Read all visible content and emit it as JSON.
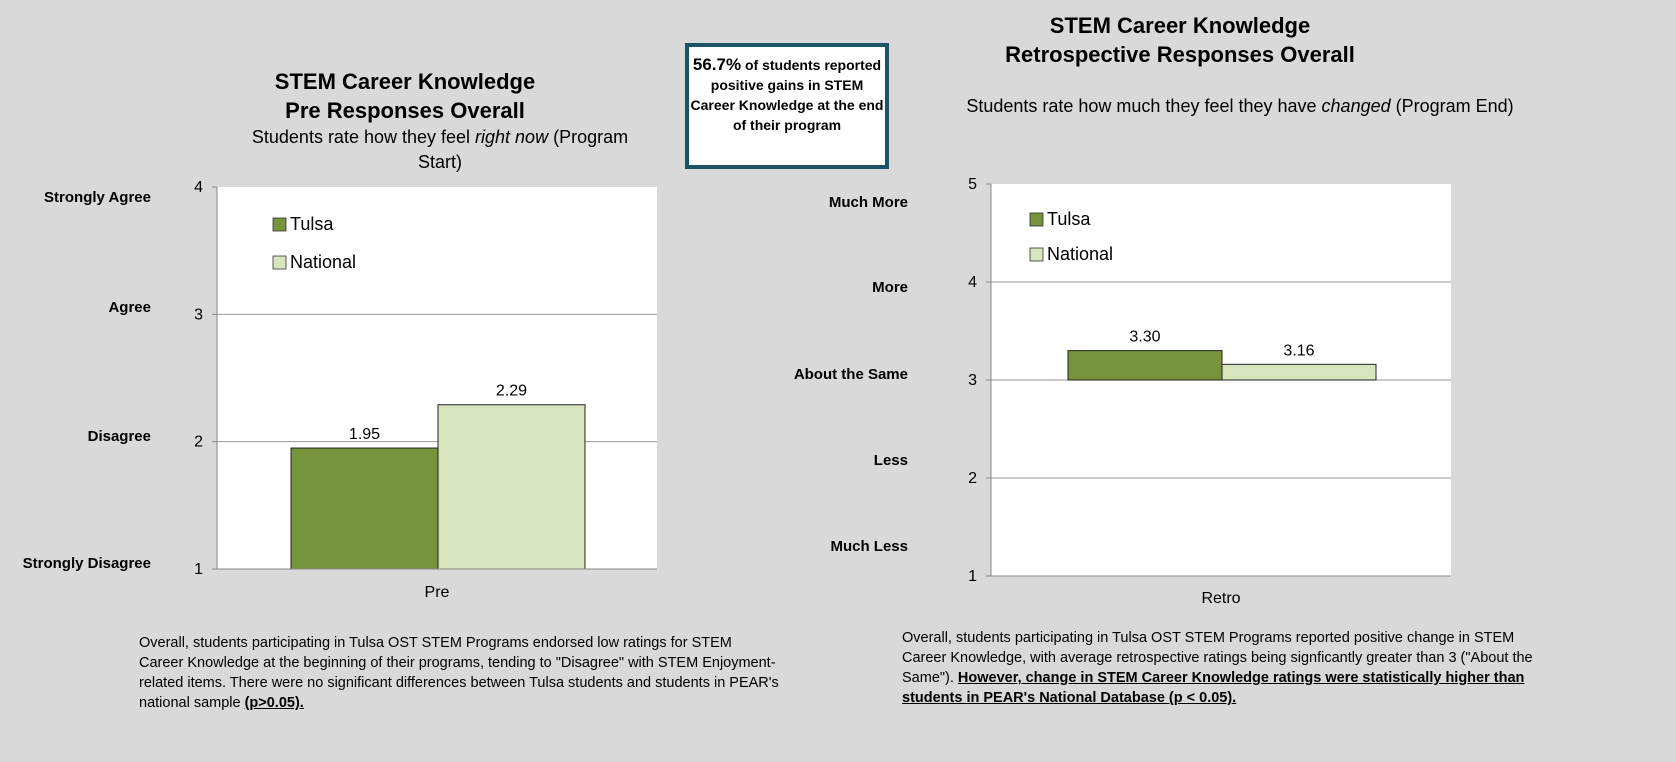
{
  "left": {
    "title_line1": "STEM Career Knowledge",
    "title_line2": "Pre Responses Overall",
    "subtitle_pre": "Students rate how they feel ",
    "subtitle_em": "right now",
    "subtitle_post": " (Program Start)",
    "likert": [
      "Strongly Agree",
      "Agree",
      "Disagree",
      "Strongly Disagree"
    ],
    "note": "Overall, students participating in Tulsa OST STEM Programs endorsed low ratings for STEM Career Knowledge at the beginning of their programs, tending to \"Disagree\" with STEM Enjoyment-related items. There were no significant differences between Tulsa students and students in PEAR's national sample ",
    "note_em": "(p>0.05)."
  },
  "right": {
    "title_line1": "STEM Career Knowledge",
    "title_line2": "Retrospective Responses Overall",
    "subtitle_pre": "Students rate how much they feel  they have ",
    "subtitle_em": "changed",
    "subtitle_post": " (Program End)",
    "likert": [
      "Much More",
      "More",
      "About the Same",
      "Less",
      "Much Less"
    ],
    "note": "Overall, students participating in Tulsa OST STEM Programs reported positive change in STEM Career Knowledge, with average retrospective ratings being signficantly greater than 3 (\"About the Same\"). ",
    "note_em": "However, change in STEM Career Knowledge ratings were statistically higher than students in PEAR's National Database (p < 0.05)."
  },
  "callout": {
    "percent": "56.7%",
    "text_a": " of students reported positive gains in STEM Career Knowledge at the end of their program"
  },
  "colors": {
    "tulsa": "#77933c",
    "national": "#d7e4bd"
  },
  "chart_data": [
    {
      "type": "bar",
      "title": "STEM Career Knowledge Pre Responses Overall",
      "categories": [
        "Pre"
      ],
      "series": [
        {
          "name": "Tulsa",
          "values": [
            1.95
          ],
          "labels": [
            "1.95"
          ]
        },
        {
          "name": "National",
          "values": [
            2.29
          ],
          "labels": [
            "2.29"
          ]
        }
      ],
      "yticks": [
        "1",
        "2",
        "3",
        "4"
      ],
      "ylim": [
        1,
        4
      ],
      "grid": true,
      "legend": "top-left"
    },
    {
      "type": "bar",
      "title": "STEM Career Knowledge Retrospective Responses Overall",
      "categories": [
        "Retro"
      ],
      "series": [
        {
          "name": "Tulsa",
          "values": [
            3.3
          ],
          "labels": [
            "3.30"
          ]
        },
        {
          "name": "National",
          "values": [
            3.16
          ],
          "labels": [
            "3.16"
          ]
        }
      ],
      "yticks": [
        "1",
        "2",
        "3",
        "4",
        "5"
      ],
      "ylim": [
        1,
        5
      ],
      "baseline": 3,
      "grid": true,
      "legend": "top-left"
    }
  ]
}
